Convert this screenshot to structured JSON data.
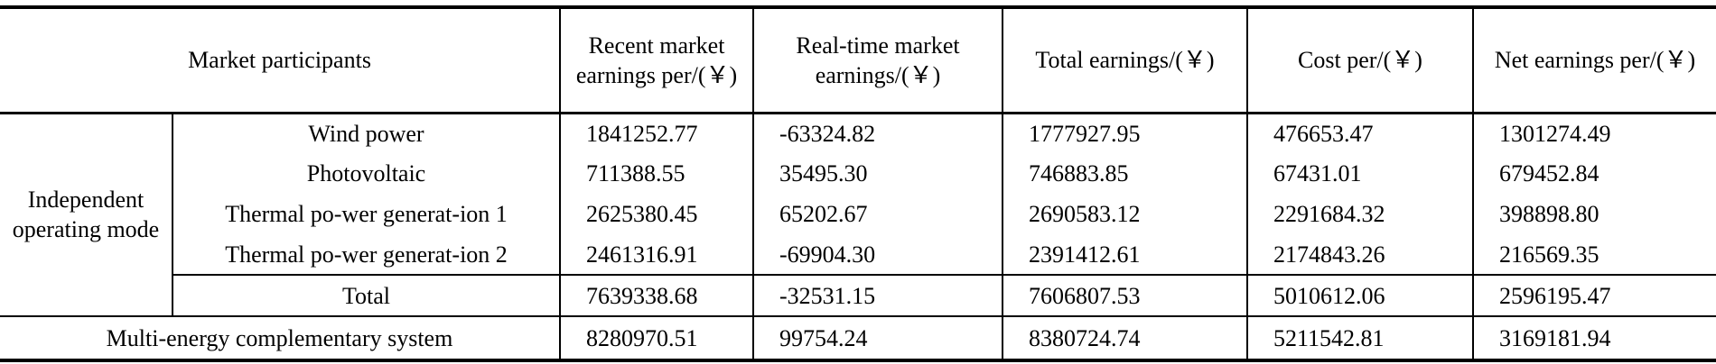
{
  "table": {
    "header": [
      "Market participants",
      "Recent market earnings per/(￥)",
      "Real-time market earnings/(￥)",
      "Total earnings/(￥)",
      "Cost per/(￥)",
      "Net earnings per/(￥)"
    ],
    "group": "Independent operating mode",
    "rows": [
      [
        "Wind power",
        "1841252.77",
        "-63324.82",
        "1777927.95",
        "476653.47",
        "1301274.49"
      ],
      [
        "Photovoltaic",
        "711388.55",
        "35495.30",
        "746883.85",
        "67431.01",
        "679452.84"
      ],
      [
        "Thermal po-wer generat-ion 1",
        "2625380.45",
        "65202.67",
        "2690583.12",
        "2291684.32",
        "398898.80"
      ],
      [
        "Thermal po-wer generat-ion 2",
        "2461316.91",
        "-69904.30",
        "2391412.61",
        "2174843.26",
        "216569.35"
      ]
    ],
    "total": [
      "Total",
      "7639338.68",
      "-32531.15",
      "7606807.53",
      "5010612.06",
      "2596195.47"
    ],
    "system": [
      "Multi-energy complementary system",
      "8280970.51",
      "99754.24",
      "8380724.74",
      "5211542.81",
      "3169181.94"
    ]
  }
}
